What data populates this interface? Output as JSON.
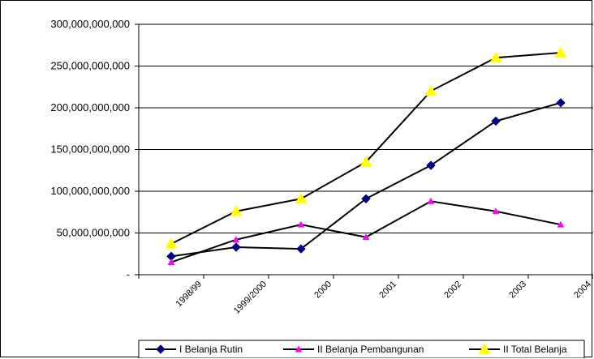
{
  "chart_data": {
    "type": "line",
    "title": "",
    "xlabel": "",
    "ylabel": "",
    "categories": [
      "1998/99",
      "1999/2000",
      "2000",
      "2001",
      "2002",
      "2003",
      "2004"
    ],
    "ylim": [
      0,
      300000000000
    ],
    "y_ticks": [
      {
        "value": 0,
        "label": "-"
      },
      {
        "value": 50000000000,
        "label": "50,000,000,000"
      },
      {
        "value": 100000000000,
        "label": "100,000,000,000"
      },
      {
        "value": 150000000000,
        "label": "150,000,000,000"
      },
      {
        "value": 200000000000,
        "label": "200,000,000,000"
      },
      {
        "value": 250000000000,
        "label": "250,000,000,000"
      },
      {
        "value": 300000000000,
        "label": "300,000,000,000"
      }
    ],
    "grid": "horizontal",
    "legend_position": "bottom",
    "series": [
      {
        "name": "I Belanja Rutin",
        "color": "#000080",
        "marker": "diamond",
        "values": [
          22000000000,
          33000000000,
          31000000000,
          91000000000,
          131000000000,
          184000000000,
          206000000000
        ]
      },
      {
        "name": "II Belanja Pembangunan",
        "color": "#ff00ff",
        "marker": "triangle",
        "values": [
          15000000000,
          42000000000,
          60000000000,
          45000000000,
          88000000000,
          76000000000,
          60000000000
        ]
      },
      {
        "name": "II Total Belanja",
        "color": "#ffff00",
        "marker": "triangle",
        "values": [
          37000000000,
          76000000000,
          91000000000,
          135000000000,
          220000000000,
          260000000000,
          266000000000
        ]
      }
    ]
  }
}
